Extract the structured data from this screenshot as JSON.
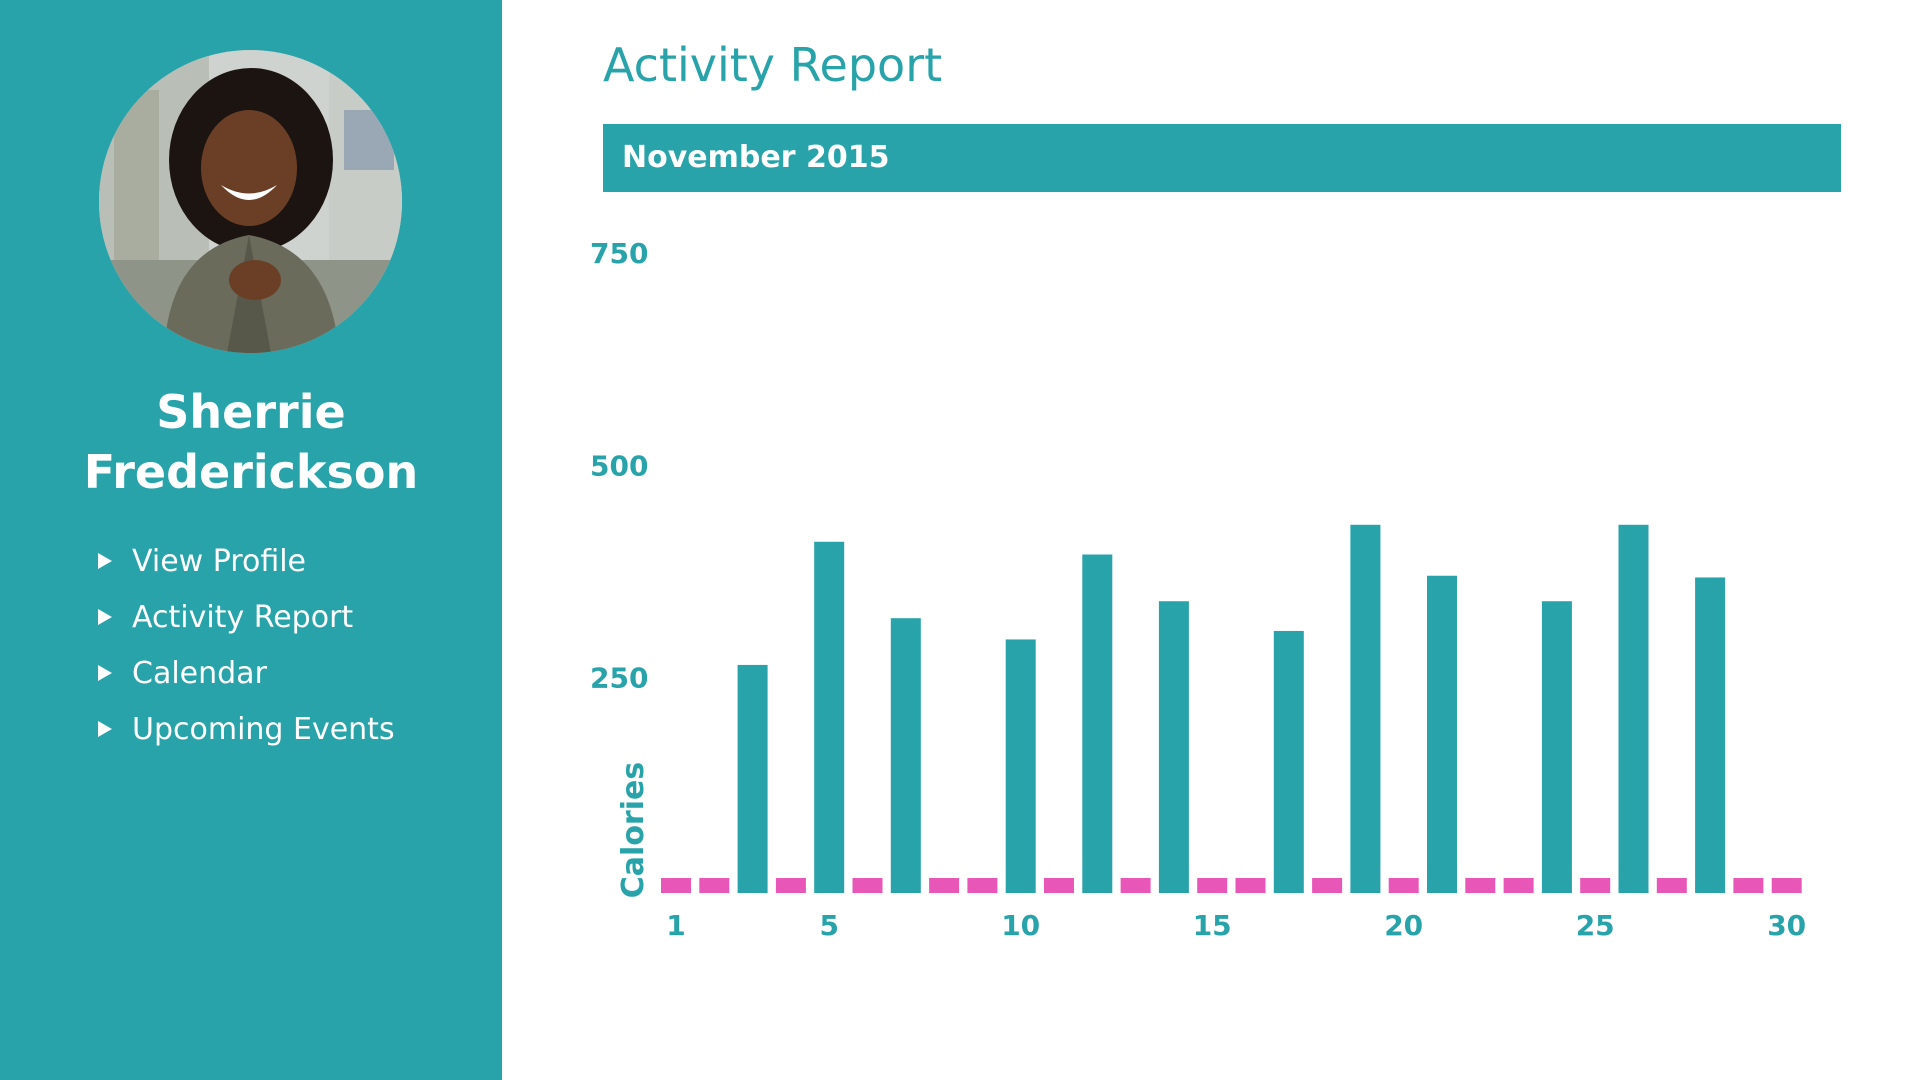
{
  "user": {
    "first_name": "Sherrie",
    "last_name": "Frederickson"
  },
  "nav": {
    "items": [
      {
        "label": "View Profile"
      },
      {
        "label": "Activity Report"
      },
      {
        "label": "Calendar"
      },
      {
        "label": "Upcoming Events"
      }
    ]
  },
  "page": {
    "title": "Activity Report",
    "month": "November 2015"
  },
  "colors": {
    "accent": "#27a3a9",
    "rest_day": "#e857b8",
    "sidebar_text": "#ffffff"
  },
  "chart_data": {
    "type": "bar",
    "title": "",
    "xlabel": "",
    "ylabel": "Calories",
    "ylim": [
      0,
      750
    ],
    "yticks": [
      250,
      500,
      750
    ],
    "xticks": [
      1,
      5,
      10,
      15,
      20,
      25,
      30
    ],
    "grid": false,
    "legend": "none",
    "x": [
      1,
      2,
      3,
      4,
      5,
      6,
      7,
      8,
      9,
      10,
      11,
      12,
      13,
      14,
      15,
      16,
      17,
      18,
      19,
      20,
      21,
      22,
      23,
      24,
      25,
      26,
      27,
      28,
      29,
      30
    ],
    "values": [
      0,
      0,
      265,
      0,
      410,
      0,
      320,
      0,
      0,
      295,
      0,
      395,
      0,
      340,
      0,
      0,
      305,
      0,
      430,
      0,
      370,
      0,
      0,
      340,
      0,
      430,
      0,
      368,
      0,
      0
    ]
  }
}
